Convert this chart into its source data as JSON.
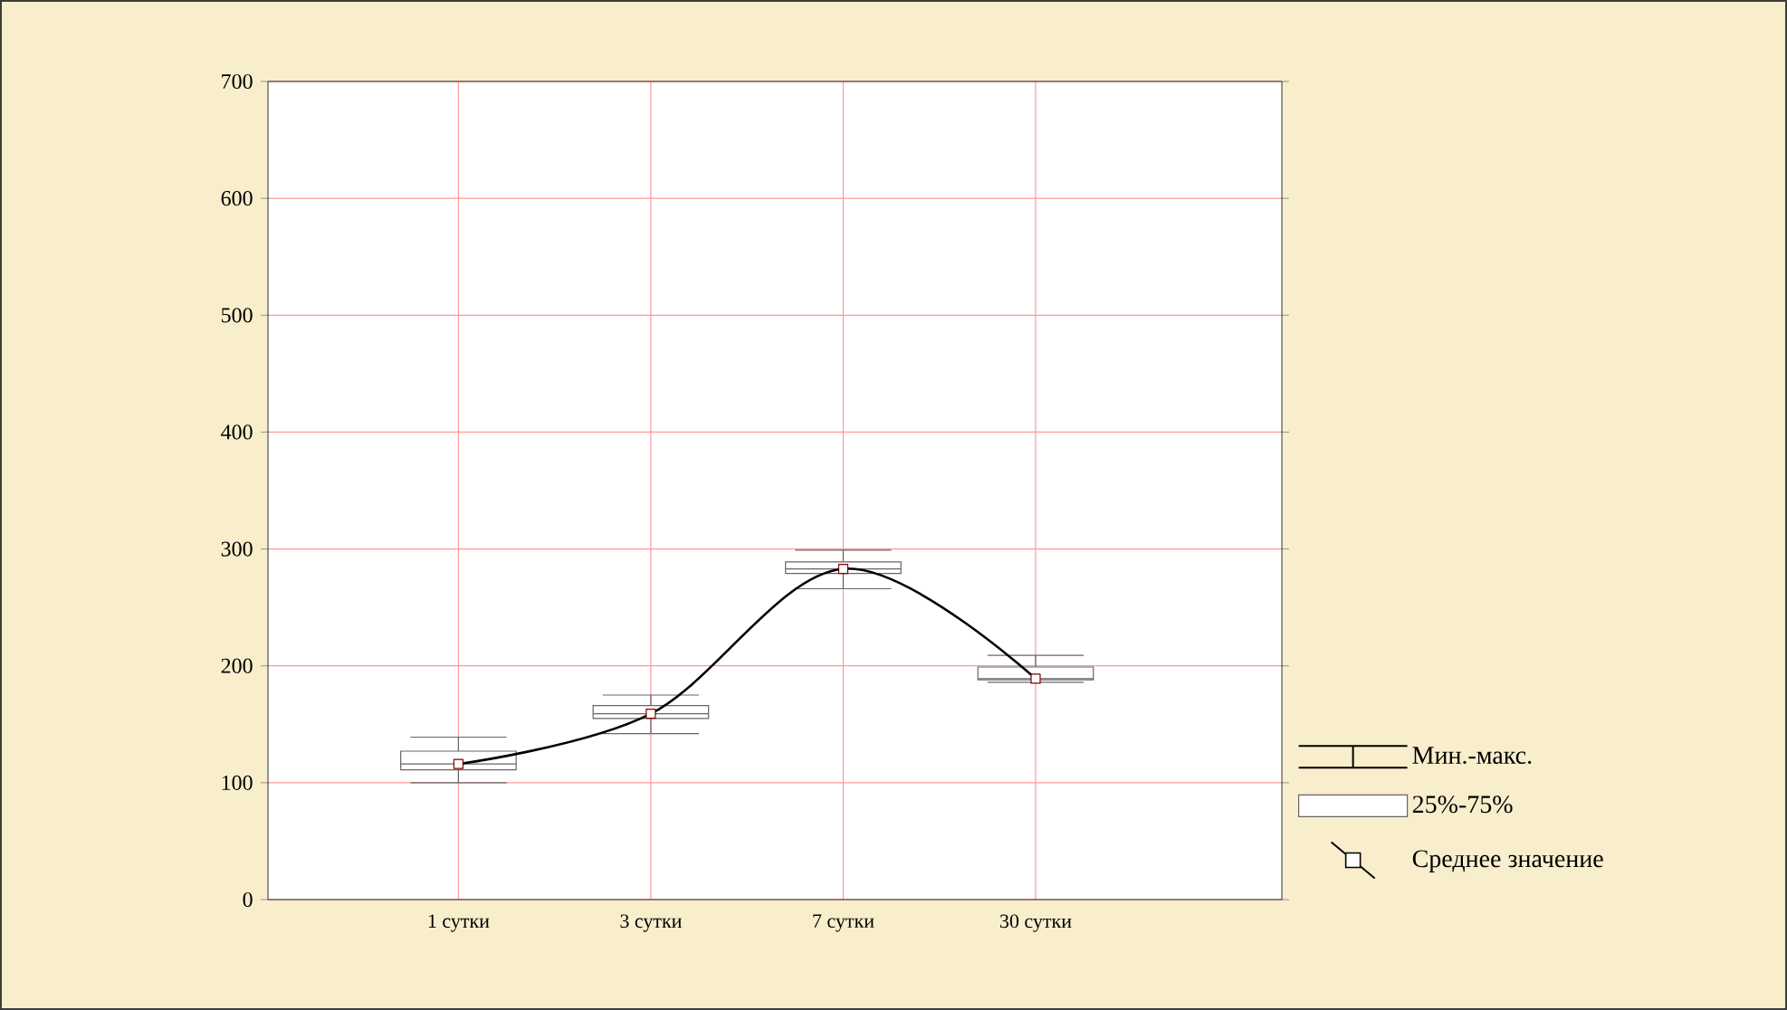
{
  "chart_data": {
    "type": "box",
    "categories": [
      "1 сутки",
      "3 сутки",
      "7 сутки",
      "30 сутки"
    ],
    "series": [
      {
        "type": "box",
        "name": "25%-75%",
        "color": "#ffffff",
        "boxes": [
          {
            "low": 100,
            "q1": 111,
            "median": 116,
            "q3": 127,
            "high": 139
          },
          {
            "low": 142,
            "q1": 155,
            "median": 159,
            "q3": 166,
            "high": 175
          },
          {
            "low": 266,
            "q1": 279,
            "median": 283,
            "q3": 289,
            "high": 299
          },
          {
            "low": 186,
            "q1": 188,
            "median": 189,
            "q3": 199,
            "high": 209
          }
        ]
      },
      {
        "type": "line",
        "name": "Среднее значение",
        "color": "#000000",
        "values": [
          116,
          159,
          283,
          189
        ]
      }
    ],
    "ylim": [
      0,
      700
    ],
    "yticks": [
      0,
      100,
      200,
      300,
      400,
      500,
      600,
      700
    ],
    "grid": true,
    "legend": "bottom right",
    "marker": "square",
    "line_style": "solid",
    "annotations": [
      "Мин.-макс."
    ]
  }
}
